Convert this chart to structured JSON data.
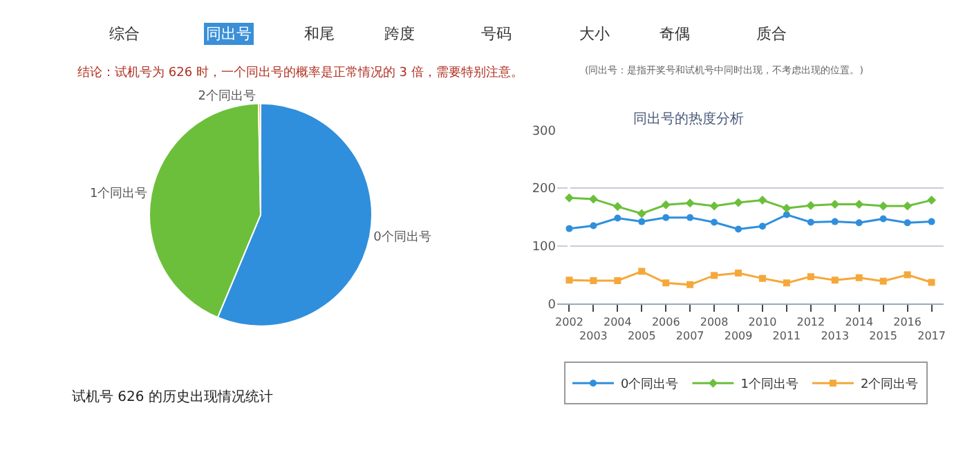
{
  "chart_data": [
    {
      "type": "pie",
      "categories": [
        "0个同出号",
        "1个同出号",
        "2个同出号"
      ],
      "values": [
        56.3,
        43.4,
        0.3
      ],
      "colors": [
        "#2f8fdc",
        "#6cbf3a",
        "#f5a83a"
      ],
      "annotations": [
        "综合",
        "同出号",
        "和尾",
        "跨度",
        "号码",
        "大小",
        "奇偶",
        "质合",
        "结论：试机号为 626 时，一个同出号的概率是正常情况的 3 倍，需要特别注意。",
        "(同出号：是指开奖号和试机号中同时出现，不考虑出现的位置。)",
        "试机号 626 的历史出现情况统计"
      ]
    },
    {
      "type": "line",
      "title": "同出号的热度分析",
      "categories": [
        "2002",
        "2003",
        "2004",
        "2005",
        "2006",
        "2007",
        "2008",
        "2009",
        "2010",
        "2011",
        "2012",
        "2013",
        "2014",
        "2015",
        "2016",
        "2017"
      ],
      "ylim": [
        0,
        300
      ],
      "yticks": [
        0,
        100,
        200,
        300
      ],
      "grid": "y",
      "legend": "bottom",
      "series": [
        {
          "name": "0个同出号",
          "color": "#2f8fdc",
          "marker": "circle",
          "values": [
            130,
            135,
            148,
            142,
            149,
            149,
            141,
            129,
            134,
            154,
            141,
            142,
            140,
            147,
            140,
            142
          ]
        },
        {
          "name": "1个同出号",
          "color": "#6cbf3a",
          "marker": "diamond",
          "values": [
            183,
            181,
            168,
            156,
            171,
            174,
            169,
            175,
            179,
            165,
            170,
            172,
            172,
            169,
            169,
            179
          ]
        },
        {
          "name": "2个同出号",
          "color": "#f5a83a",
          "marker": "square",
          "values": [
            41,
            40,
            40,
            56,
            36,
            33,
            49,
            53,
            44,
            36,
            47,
            41,
            45,
            39,
            50,
            37
          ]
        }
      ]
    }
  ]
}
